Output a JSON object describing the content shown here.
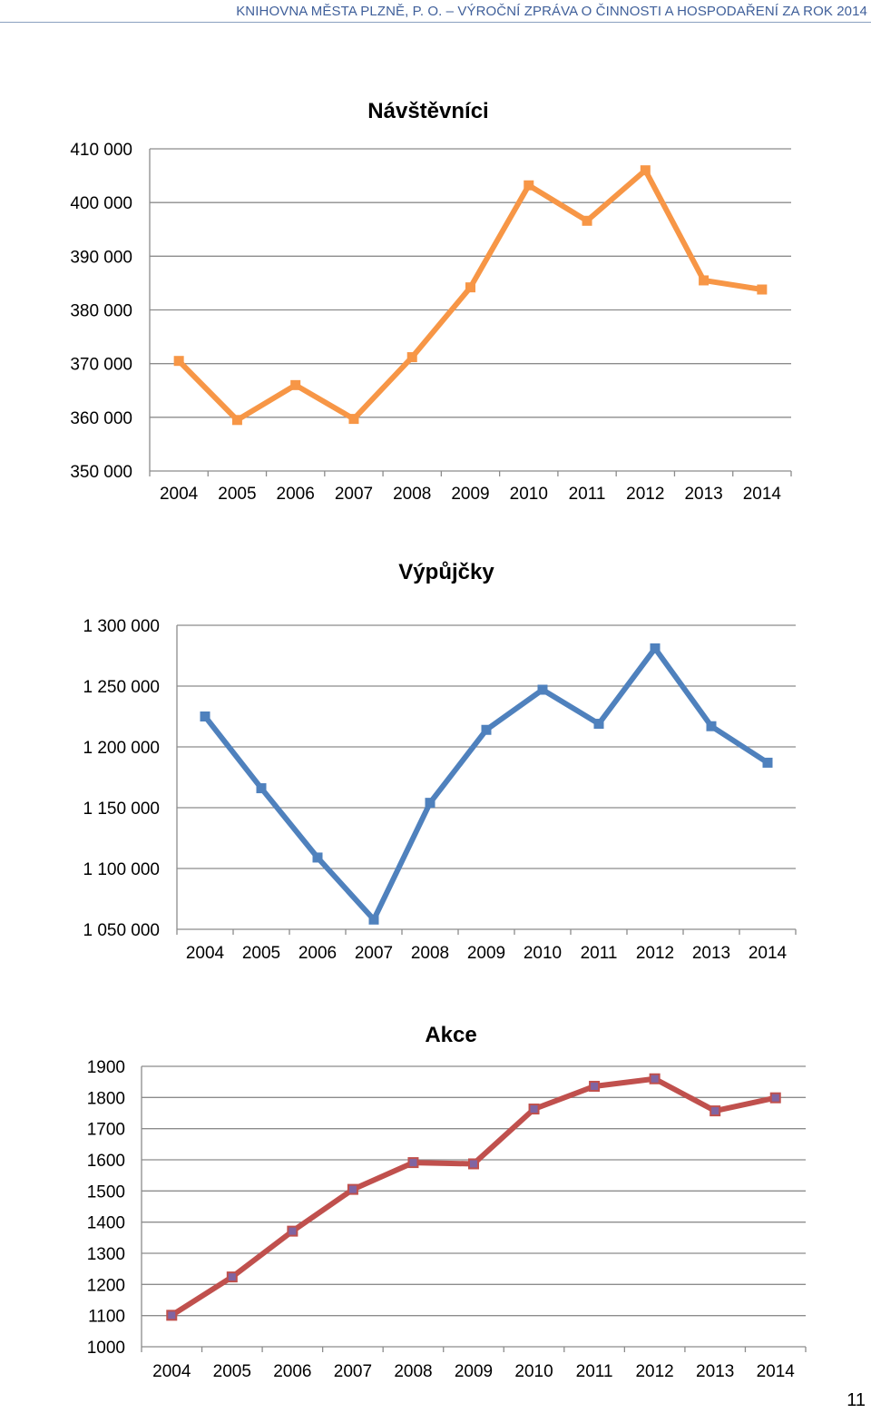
{
  "header": {
    "text": "KNIHOVNA MĚSTA PLZNĚ, P. O. – VÝROČNÍ ZPRÁVA O ČINNOSTI A HOSPODAŘENÍ ZA ROK 2014"
  },
  "page_number": "11",
  "chart_data": [
    {
      "type": "line",
      "title": "Návštěvníci",
      "categories": [
        "2004",
        "2005",
        "2006",
        "2007",
        "2008",
        "2009",
        "2010",
        "2011",
        "2012",
        "2013",
        "2014"
      ],
      "series": [
        {
          "name": "Návštěvníci",
          "color": "#f79646",
          "values": [
            370500,
            359500,
            366000,
            359700,
            371200,
            384200,
            403200,
            396600,
            406000,
            385500,
            383800
          ]
        }
      ],
      "ylim": [
        350000,
        410000
      ],
      "yticks": [
        350000,
        360000,
        370000,
        380000,
        390000,
        400000,
        410000
      ],
      "ytick_labels": [
        "350 000",
        "360 000",
        "370 000",
        "380 000",
        "390 000",
        "400 000",
        "410 000"
      ],
      "xlabel": "",
      "ylabel": "",
      "grid": true
    },
    {
      "type": "line",
      "title": "Výpůjčky",
      "categories": [
        "2004",
        "2005",
        "2006",
        "2007",
        "2008",
        "2009",
        "2010",
        "2011",
        "2012",
        "2013",
        "2014"
      ],
      "series": [
        {
          "name": "Výpůjčky",
          "color": "#4f81bd",
          "values": [
            1225000,
            1166000,
            1109000,
            1058000,
            1154000,
            1214000,
            1247000,
            1219000,
            1281000,
            1217000,
            1187000
          ]
        }
      ],
      "ylim": [
        1050000,
        1300000
      ],
      "yticks": [
        1050000,
        1100000,
        1150000,
        1200000,
        1250000,
        1300000
      ],
      "ytick_labels": [
        "1 050 000",
        "1 100 000",
        "1 150 000",
        "1 200 000",
        "1 250 000",
        "1 300 000"
      ],
      "xlabel": "",
      "ylabel": "",
      "grid": true
    },
    {
      "type": "line",
      "title": "Akce",
      "categories": [
        "2004",
        "2005",
        "2006",
        "2007",
        "2008",
        "2009",
        "2010",
        "2011",
        "2012",
        "2013",
        "2014"
      ],
      "series": [
        {
          "name": "Akce",
          "color": "#c0504d",
          "marker_color": "#8064a2",
          "values": [
            1101,
            1224,
            1371,
            1505,
            1591,
            1587,
            1763,
            1836,
            1860,
            1757,
            1799
          ]
        }
      ],
      "ylim": [
        1000,
        1900
      ],
      "yticks": [
        1000,
        1100,
        1200,
        1300,
        1400,
        1500,
        1600,
        1700,
        1800,
        1900
      ],
      "ytick_labels": [
        "1000",
        "1100",
        "1200",
        "1300",
        "1400",
        "1500",
        "1600",
        "1700",
        "1800",
        "1900"
      ],
      "xlabel": "",
      "ylabel": "",
      "grid": true
    }
  ]
}
